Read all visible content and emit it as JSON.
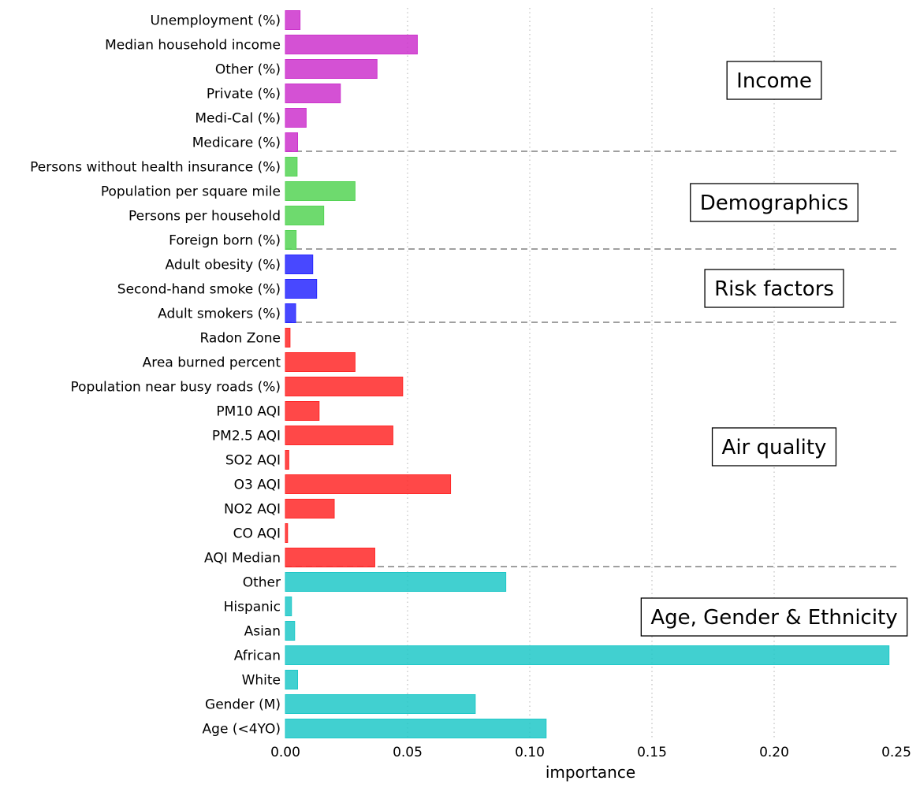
{
  "chart_data": {
    "type": "bar",
    "orientation": "horizontal",
    "xlabel": "importance",
    "xlim": [
      0.0,
      0.25
    ],
    "xticks": [
      "0.00",
      "0.05",
      "0.10",
      "0.15",
      "0.20",
      "0.25"
    ],
    "grid": "vertical dotted",
    "groups": [
      {
        "name": "Income",
        "color": "#cc33cc",
        "categories": [
          "Unemployment (%)",
          "Median household income",
          "Other (%)",
          "Private (%)",
          "Medi-Cal (%)",
          "Medicare (%)"
        ],
        "values": [
          0.006,
          0.054,
          0.0375,
          0.0225,
          0.0085,
          0.005
        ]
      },
      {
        "name": "Demographics",
        "color": "#55d455",
        "categories": [
          "Persons without health insurance (%)",
          "Population per square mile",
          "Persons per household",
          "Foreign born (%)"
        ],
        "values": [
          0.0048,
          0.0285,
          0.0157,
          0.0044
        ]
      },
      {
        "name": "Risk factors",
        "color": "#2828ff",
        "categories": [
          "Adult obesity (%)",
          "Second-hand smoke (%)",
          "Adult smokers (%)"
        ],
        "values": [
          0.0112,
          0.0128,
          0.0042
        ]
      },
      {
        "name": "Air quality",
        "color": "#ff2828",
        "categories": [
          "Radon Zone",
          "Area burned percent",
          "Population near busy roads (%)",
          "PM10 AQI",
          "PM2.5 AQI",
          "SO2 AQI",
          "O3 AQI",
          "NO2 AQI",
          "CO AQI",
          "AQI Median"
        ],
        "values": [
          0.0019,
          0.0285,
          0.048,
          0.0138,
          0.044,
          0.0014,
          0.0676,
          0.02,
          0.0009,
          0.0366
        ]
      },
      {
        "name": "Age, Gender & Ethnicity",
        "color": "#20c8c8",
        "categories": [
          "Other",
          "Hispanic",
          "Asian",
          "African",
          "White",
          "Gender (M)",
          "Age (<4YO)"
        ],
        "values": [
          0.0902,
          0.0025,
          0.0038,
          0.247,
          0.005,
          0.0777,
          0.1067
        ]
      }
    ]
  }
}
